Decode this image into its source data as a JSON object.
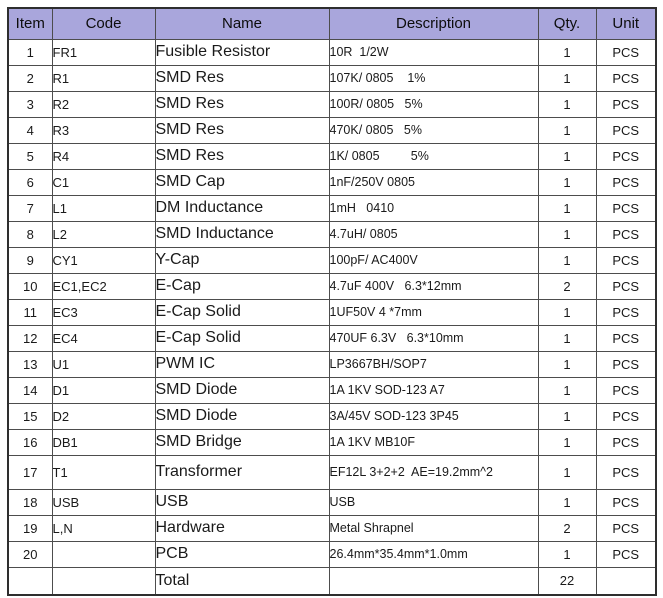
{
  "colors": {
    "header_bg": "#a9a6dc",
    "grid_line": "#4d4d4d",
    "outer_border": "#2e2e2e",
    "text": "#1a1a1a"
  },
  "table": {
    "headers": [
      "Item",
      "Code",
      "Name",
      "Description",
      "Qty.",
      "Unit"
    ],
    "rows": [
      {
        "item": "1",
        "code": "FR1",
        "name": "Fusible Resistor",
        "desc": "10R  1/2W",
        "qty": "1",
        "unit": "PCS"
      },
      {
        "item": "2",
        "code": "R1",
        "name": "SMD Res",
        "desc": "107K/ 0805    1%",
        "qty": "1",
        "unit": "PCS"
      },
      {
        "item": "3",
        "code": "R2",
        "name": "SMD Res",
        "desc": "100R/ 0805   5%",
        "qty": "1",
        "unit": "PCS"
      },
      {
        "item": "4",
        "code": "R3",
        "name": "SMD Res",
        "desc": "470K/ 0805   5%",
        "qty": "1",
        "unit": "PCS"
      },
      {
        "item": "5",
        "code": "R4",
        "name": "SMD Res",
        "desc": "1K/ 0805         5%",
        "qty": "1",
        "unit": "PCS"
      },
      {
        "item": "6",
        "code": "C1",
        "name": "SMD Cap",
        "desc": "1nF/250V 0805",
        "qty": "1",
        "unit": "PCS"
      },
      {
        "item": "7",
        "code": "L1",
        "name": "DM Inductance",
        "desc": "1mH   0410",
        "qty": "1",
        "unit": "PCS"
      },
      {
        "item": "8",
        "code": "L2",
        "name": "SMD Inductance",
        "desc": "4.7uH/ 0805",
        "qty": "1",
        "unit": "PCS"
      },
      {
        "item": "9",
        "code": "CY1",
        "name": "Y-Cap",
        "desc": "100pF/ AC400V",
        "qty": "1",
        "unit": "PCS"
      },
      {
        "item": "10",
        "code": "EC1,EC2",
        "name": "E-Cap",
        "desc": "4.7uF 400V   6.3*12mm",
        "qty": "2",
        "unit": "PCS"
      },
      {
        "item": "11",
        "code": "EC3",
        "name": "E-Cap Solid",
        "desc": "1UF50V 4 *7mm",
        "qty": "1",
        "unit": "PCS"
      },
      {
        "item": "12",
        "code": "EC4",
        "name": "E-Cap Solid",
        "desc": "470UF 6.3V   6.3*10mm",
        "qty": "1",
        "unit": "PCS"
      },
      {
        "item": "13",
        "code": "U1",
        "name": "PWM IC",
        "desc": "LP3667BH/SOP7",
        "qty": "1",
        "unit": "PCS"
      },
      {
        "item": "14",
        "code": "D1",
        "name": "SMD Diode",
        "desc": "1A 1KV SOD-123 A7",
        "qty": "1",
        "unit": "PCS"
      },
      {
        "item": "15",
        "code": "D2",
        "name": "SMD Diode",
        "desc": "3A/45V SOD-123 3P45",
        "qty": "1",
        "unit": "PCS"
      },
      {
        "item": "16",
        "code": "DB1",
        "name": "SMD Bridge",
        "desc": "1A 1KV MB10F",
        "qty": "1",
        "unit": "PCS"
      },
      {
        "item": "17",
        "code": "T1",
        "name": "Transformer",
        "desc": "EF12L 3+2+2  AE=19.2mm^2",
        "qty": "1",
        "unit": "PCS"
      },
      {
        "item": "18",
        "code": "USB",
        "name": "USB",
        "desc": "USB",
        "qty": "1",
        "unit": "PCS"
      },
      {
        "item": "19",
        "code": "L,N",
        "name": "Hardware",
        "desc": "Metal Shrapnel",
        "qty": "2",
        "unit": "PCS"
      },
      {
        "item": "20",
        "code": "",
        "name": "PCB",
        "desc": "26.4mm*35.4mm*1.0mm",
        "qty": "1",
        "unit": "PCS"
      },
      {
        "item": "",
        "code": "",
        "name": "Total",
        "desc": "",
        "qty": "22",
        "unit": ""
      }
    ]
  }
}
